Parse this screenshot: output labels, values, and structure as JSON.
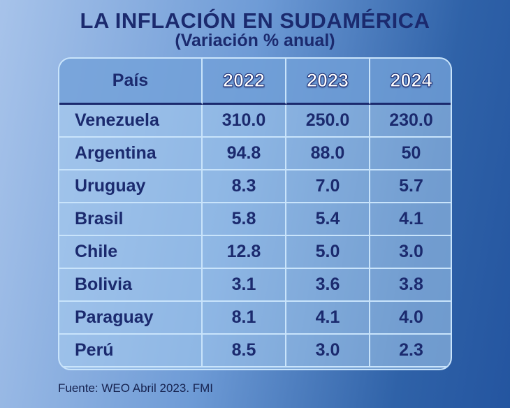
{
  "header": {
    "title": "LA INFLACIÓN EN SUDAMÉRICA",
    "subtitle": "(Variación % anual)"
  },
  "table": {
    "columns": [
      "País",
      "2022",
      "2023",
      "2024"
    ],
    "rows": [
      [
        "Venezuela",
        "310.0",
        "250.0",
        "230.0"
      ],
      [
        "Argentina",
        "94.8",
        "88.0",
        "50"
      ],
      [
        "Uruguay",
        "8.3",
        "7.0",
        "5.7"
      ],
      [
        "Brasil",
        "5.8",
        "5.4",
        "4.1"
      ],
      [
        "Chile",
        "12.8",
        "5.0",
        "3.0"
      ],
      [
        "Bolivia",
        "3.1",
        "3.6",
        "3.8"
      ],
      [
        "Paraguay",
        "8.1",
        "4.1",
        "4.0"
      ],
      [
        "Perú",
        "8.5",
        "3.0",
        "2.3"
      ]
    ]
  },
  "footer": {
    "source": "Fuente: WEO Abril 2023. FMI"
  }
}
